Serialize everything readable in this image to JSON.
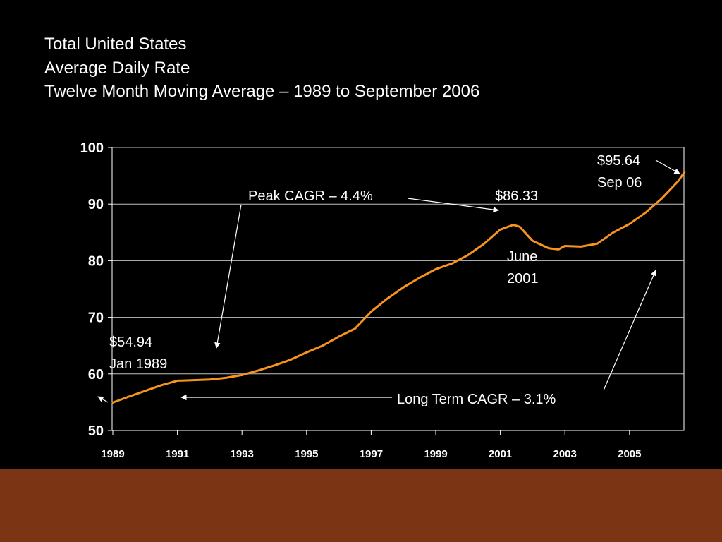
{
  "slide": {
    "title_lines": [
      "Total United States",
      "Average Daily Rate",
      "Twelve Month Moving Average – 1989 to September 2006"
    ]
  },
  "colors": {
    "background": "#000000",
    "plot_background": "#ffffff",
    "series_line": "#f7931e",
    "gridline": "#c0c0c0",
    "footer_band": "#7b3514",
    "text": "#ffffff"
  },
  "chart_data": {
    "type": "line",
    "title": "",
    "xlabel": "",
    "ylabel": "",
    "ylim": [
      50,
      100
    ],
    "xlim": [
      1989,
      2006.75
    ],
    "yticks": [
      50,
      60,
      70,
      80,
      90,
      100
    ],
    "xticks": [
      "1989",
      "1991",
      "1993",
      "1995",
      "1997",
      "1999",
      "2001",
      "2003",
      "2005"
    ],
    "grid": true,
    "legend": "none",
    "series": [
      {
        "x": [
          1989.0,
          1989.5,
          1990.0,
          1990.5,
          1991.0,
          1991.5,
          1992.0,
          1992.5,
          1993.0,
          1993.5,
          1994.0,
          1994.5,
          1995.0,
          1995.5,
          1996.0,
          1996.5,
          1997.0,
          1997.5,
          1998.0,
          1998.5,
          1999.0,
          1999.5,
          2000.0,
          2000.5,
          2001.0,
          2001.4,
          2001.6,
          2002.0,
          2002.5,
          2002.8,
          2003.0,
          2003.5,
          2004.0,
          2004.5,
          2005.0,
          2005.5,
          2006.0,
          2006.5,
          2006.7
        ],
        "y": [
          54.94,
          56.0,
          57.0,
          58.0,
          58.8,
          58.9,
          59.0,
          59.3,
          59.8,
          60.6,
          61.5,
          62.5,
          63.8,
          65.0,
          66.6,
          68.0,
          71.0,
          73.3,
          75.3,
          77.0,
          78.5,
          79.5,
          81.0,
          83.0,
          85.5,
          86.33,
          86.0,
          83.5,
          82.2,
          82.0,
          82.6,
          82.5,
          83.0,
          85.0,
          86.5,
          88.5,
          91.0,
          94.0,
          95.64
        ]
      }
    ],
    "annotations": [
      {
        "id": "jan1989",
        "lines": [
          "$54.94",
          "Jan 1989"
        ]
      },
      {
        "id": "peak-cagr",
        "lines": [
          "Peak CAGR – 4.4%"
        ]
      },
      {
        "id": "peak-value",
        "lines": [
          "$86.33"
        ]
      },
      {
        "id": "june2001",
        "lines": [
          "June",
          "2001"
        ]
      },
      {
        "id": "sep06",
        "lines": [
          "$95.64",
          "Sep 06"
        ]
      },
      {
        "id": "long-term-cagr",
        "lines": [
          "Long Term CAGR – 3.1%"
        ]
      }
    ]
  }
}
